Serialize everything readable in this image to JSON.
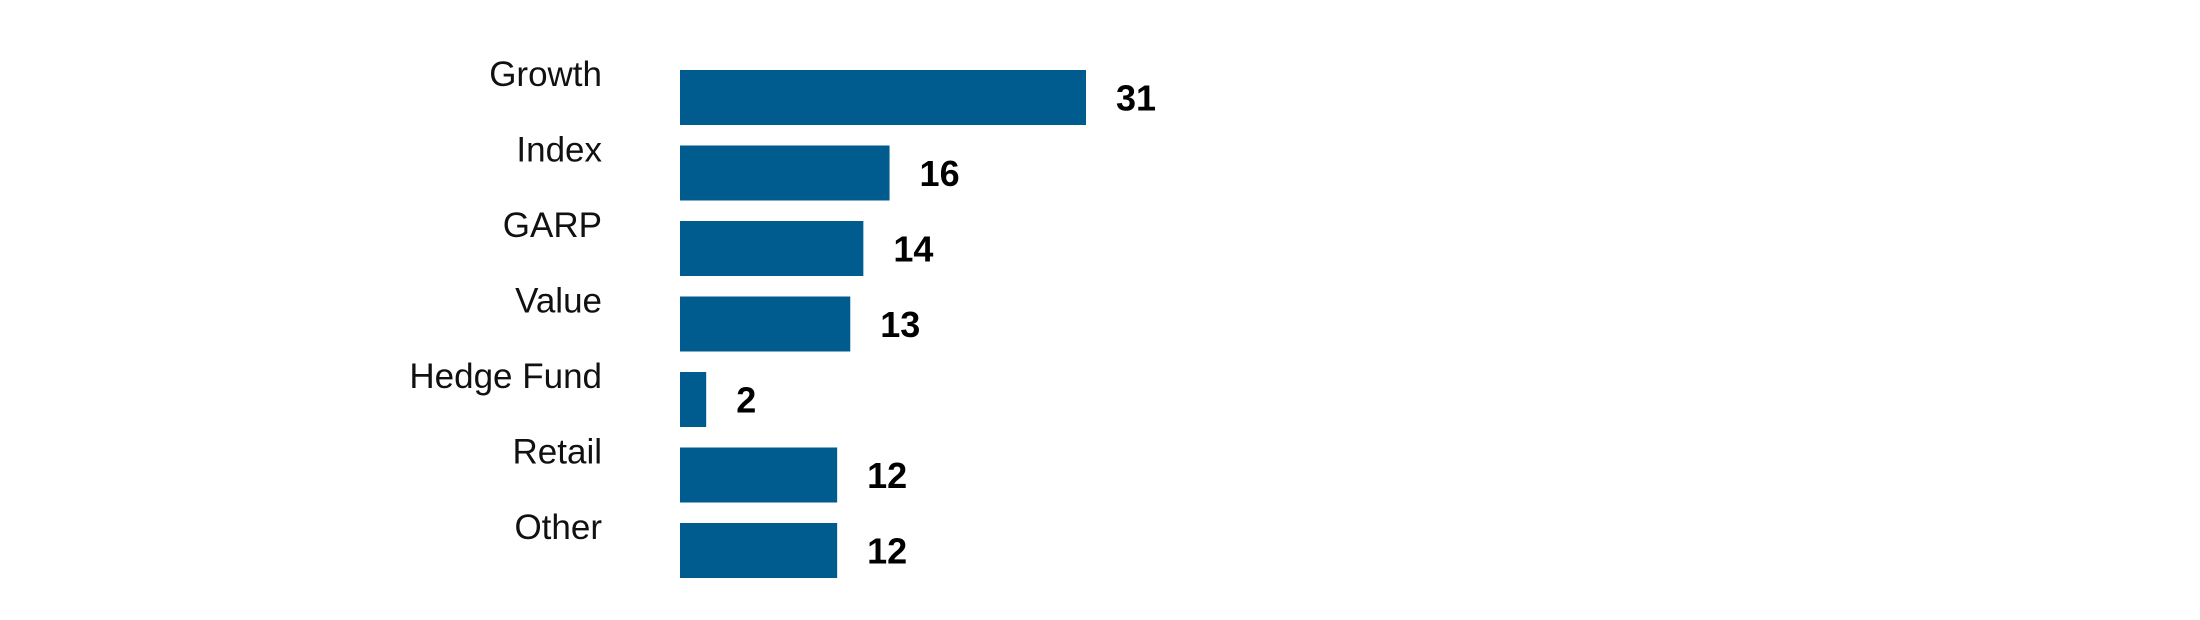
{
  "chart_data": {
    "type": "bar",
    "orientation": "horizontal",
    "categories": [
      "Growth",
      "Index",
      "GARP",
      "Value",
      "Hedge Fund",
      "Retail",
      "Other"
    ],
    "values": [
      31,
      16,
      14,
      13,
      2,
      12,
      12
    ],
    "title": "",
    "xlabel": "",
    "ylabel": "",
    "xlim": [
      0,
      31
    ],
    "grid": false,
    "legend": "none",
    "bar_color": "#005b8e",
    "data_labels": true
  }
}
